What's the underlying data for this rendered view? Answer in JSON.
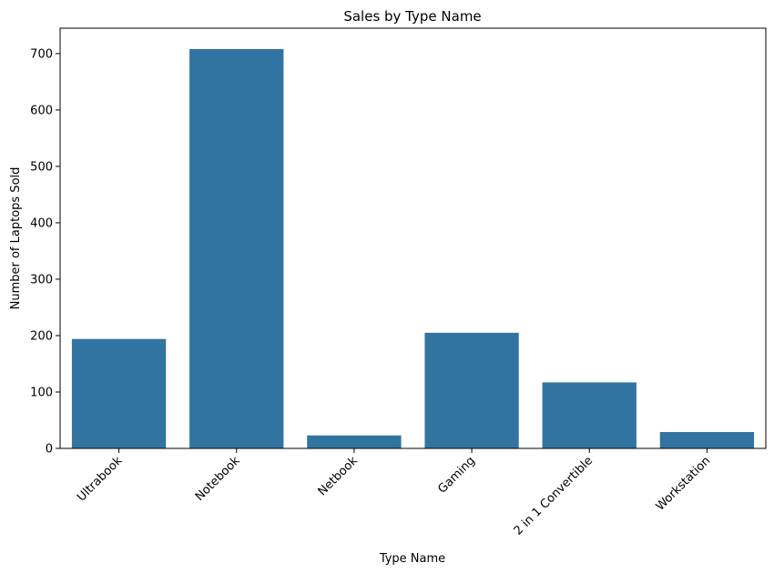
{
  "chart_data": {
    "type": "bar",
    "title": "Sales by Type Name",
    "xlabel": "Type Name",
    "ylabel": "Number of Laptops Sold",
    "categories": [
      "Ultrabook",
      "Notebook",
      "Netbook",
      "Gaming",
      "2 in 1 Convertible",
      "Workstation"
    ],
    "values": [
      194,
      708,
      23,
      205,
      117,
      29
    ],
    "ylim": [
      0,
      745
    ],
    "yticks": [
      0,
      100,
      200,
      300,
      400,
      500,
      600,
      700
    ],
    "bar_color": "#3274a1",
    "grid": false,
    "legend": "none",
    "xtick_rotation": 45
  }
}
